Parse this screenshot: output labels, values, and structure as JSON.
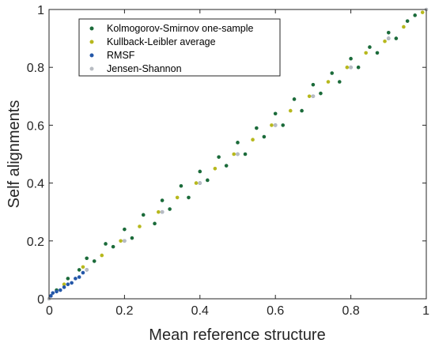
{
  "chart_data": {
    "type": "scatter",
    "xlabel": "Mean reference structure",
    "ylabel": "Self alignments",
    "xlim": [
      0,
      1
    ],
    "ylim": [
      0,
      1
    ],
    "x_ticks": [
      0,
      0.2,
      0.4,
      0.6,
      0.8,
      1
    ],
    "y_ticks": [
      0,
      0.2,
      0.4,
      0.6,
      0.8,
      1
    ],
    "x_tick_labels": [
      "0",
      "0.2",
      "0.4",
      "0.6",
      "0.8",
      "1"
    ],
    "y_tick_labels": [
      "0",
      "0.2",
      "0.4",
      "0.6",
      "0.8",
      "1"
    ],
    "grid": false,
    "legend_position": "top-left",
    "series": [
      {
        "name": "Kolmogorov-Smirnov one-sample",
        "color": "#1b6b3a",
        "points": [
          [
            0.02,
            0.03
          ],
          [
            0.05,
            0.07
          ],
          [
            0.08,
            0.1
          ],
          [
            0.1,
            0.14
          ],
          [
            0.12,
            0.13
          ],
          [
            0.15,
            0.19
          ],
          [
            0.17,
            0.18
          ],
          [
            0.2,
            0.24
          ],
          [
            0.22,
            0.21
          ],
          [
            0.25,
            0.29
          ],
          [
            0.28,
            0.26
          ],
          [
            0.3,
            0.34
          ],
          [
            0.32,
            0.31
          ],
          [
            0.35,
            0.39
          ],
          [
            0.37,
            0.35
          ],
          [
            0.4,
            0.44
          ],
          [
            0.42,
            0.41
          ],
          [
            0.45,
            0.49
          ],
          [
            0.47,
            0.46
          ],
          [
            0.5,
            0.54
          ],
          [
            0.52,
            0.5
          ],
          [
            0.55,
            0.59
          ],
          [
            0.57,
            0.56
          ],
          [
            0.6,
            0.64
          ],
          [
            0.62,
            0.6
          ],
          [
            0.65,
            0.69
          ],
          [
            0.67,
            0.65
          ],
          [
            0.7,
            0.74
          ],
          [
            0.72,
            0.71
          ],
          [
            0.75,
            0.78
          ],
          [
            0.77,
            0.75
          ],
          [
            0.8,
            0.83
          ],
          [
            0.82,
            0.8
          ],
          [
            0.85,
            0.87
          ],
          [
            0.87,
            0.85
          ],
          [
            0.9,
            0.92
          ],
          [
            0.92,
            0.9
          ],
          [
            0.95,
            0.96
          ],
          [
            0.97,
            0.98
          ]
        ]
      },
      {
        "name": "Kullback-Leibler average",
        "color": "#b7b81d",
        "points": [
          [
            0.04,
            0.05
          ],
          [
            0.09,
            0.11
          ],
          [
            0.14,
            0.15
          ],
          [
            0.19,
            0.2
          ],
          [
            0.24,
            0.25
          ],
          [
            0.29,
            0.3
          ],
          [
            0.34,
            0.35
          ],
          [
            0.39,
            0.4
          ],
          [
            0.44,
            0.45
          ],
          [
            0.49,
            0.5
          ],
          [
            0.54,
            0.55
          ],
          [
            0.59,
            0.6
          ],
          [
            0.64,
            0.65
          ],
          [
            0.69,
            0.7
          ],
          [
            0.74,
            0.75
          ],
          [
            0.79,
            0.8
          ],
          [
            0.84,
            0.85
          ],
          [
            0.89,
            0.89
          ],
          [
            0.94,
            0.94
          ],
          [
            0.99,
            0.99
          ]
        ]
      },
      {
        "name": "RMSF",
        "color": "#2457a8",
        "points": [
          [
            0.005,
            0.01
          ],
          [
            0.01,
            0.02
          ],
          [
            0.02,
            0.025
          ],
          [
            0.03,
            0.03
          ],
          [
            0.04,
            0.04
          ],
          [
            0.05,
            0.05
          ],
          [
            0.06,
            0.055
          ],
          [
            0.07,
            0.07
          ],
          [
            0.08,
            0.075
          ],
          [
            0.09,
            0.09
          ],
          [
            0.1,
            0.1
          ],
          [
            0.2,
            0.2
          ],
          [
            0.3,
            0.3
          ],
          [
            0.4,
            0.4
          ],
          [
            0.5,
            0.5
          ],
          [
            0.6,
            0.6
          ],
          [
            0.7,
            0.7
          ],
          [
            0.8,
            0.8
          ],
          [
            0.9,
            0.9
          ]
        ]
      },
      {
        "name": "Jensen-Shannon",
        "color": "#b8bcc2",
        "points": [
          [
            0.0,
            0.0
          ],
          [
            0.1,
            0.1
          ],
          [
            0.2,
            0.2
          ],
          [
            0.3,
            0.3
          ],
          [
            0.4,
            0.4
          ],
          [
            0.5,
            0.5
          ],
          [
            0.6,
            0.6
          ],
          [
            0.7,
            0.7
          ],
          [
            0.8,
            0.8
          ],
          [
            0.9,
            0.9
          ],
          [
            1.0,
            1.0
          ]
        ]
      }
    ]
  }
}
